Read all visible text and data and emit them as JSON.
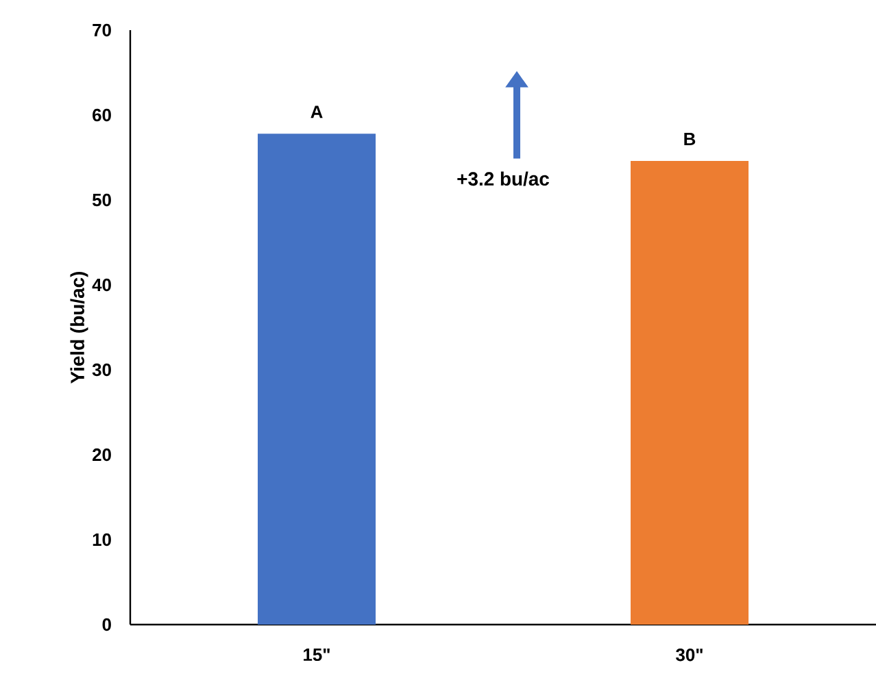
{
  "chart_data": {
    "type": "bar",
    "ylabel": "Yield (bu/ac)",
    "categories": [
      "15\"",
      "30\""
    ],
    "values": [
      57.8,
      54.6
    ],
    "colors": [
      "#4472c4",
      "#ed7d31"
    ],
    "ylim": [
      0,
      70
    ],
    "yticks": [
      0,
      10,
      20,
      30,
      40,
      50,
      60,
      70
    ],
    "annotations": [
      {
        "text": "A",
        "x": "15\"",
        "y": 57.8
      },
      {
        "text": "B",
        "x": "30\"",
        "y": 54.6
      },
      "+3.2 bu/ac"
    ]
  }
}
